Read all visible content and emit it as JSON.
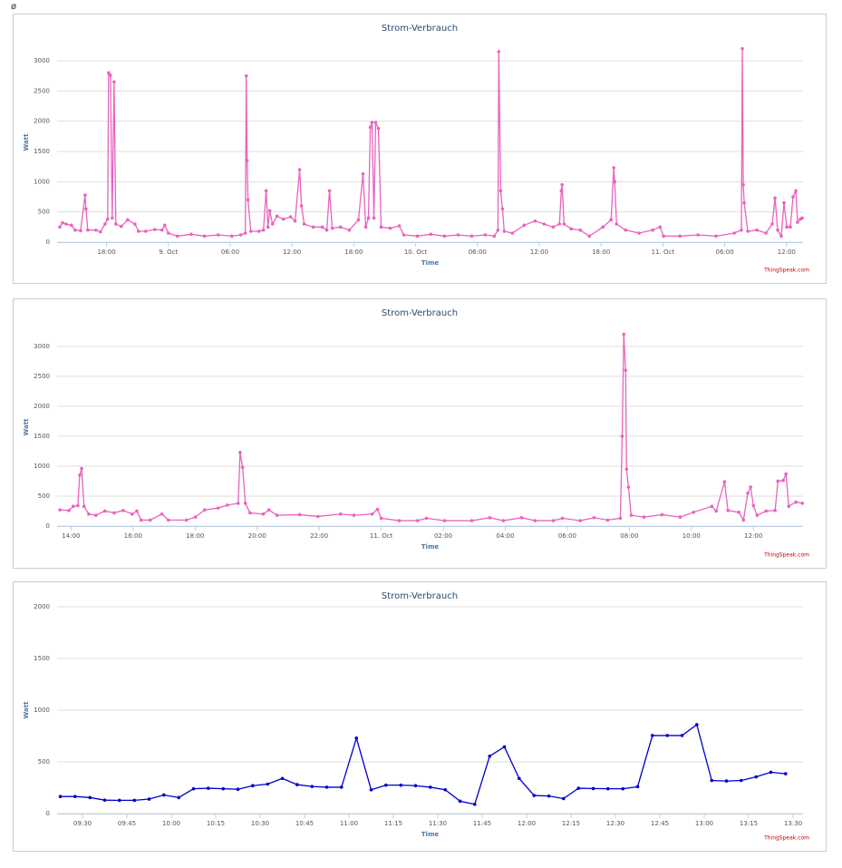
{
  "corner_symbol": "ø",
  "chart_data": [
    {
      "type": "line",
      "title": "Strom-Verbrauch",
      "y_label": "Watt",
      "x_label": "Time",
      "credit": "ThingSpeak.com",
      "color": "#e963bf",
      "grid": true,
      "markers": true,
      "xlim": [
        -10.8,
        61.6
      ],
      "ylim": [
        0,
        3300
      ],
      "yticks": [
        0,
        500,
        1000,
        1500,
        2000,
        2500,
        3000
      ],
      "xticks": [
        {
          "value": -6,
          "label": "18:00"
        },
        {
          "value": 0,
          "label": "9. Oct"
        },
        {
          "value": 6,
          "label": "06:00"
        },
        {
          "value": 12,
          "label": "12:00"
        },
        {
          "value": 18,
          "label": "18:00"
        },
        {
          "value": 24,
          "label": "10. Oct"
        },
        {
          "value": 30,
          "label": "06:00"
        },
        {
          "value": 36,
          "label": "12:00"
        },
        {
          "value": 42,
          "label": "18:00"
        },
        {
          "value": 48,
          "label": "11. Oct"
        },
        {
          "value": 54,
          "label": "06:00"
        },
        {
          "value": 60,
          "label": "12:00"
        }
      ],
      "x": [
        -10.54,
        -10.28,
        -9.93,
        -9.4,
        -9.05,
        -8.52,
        -8.08,
        -8.0,
        -7.82,
        -7.03,
        -6.59,
        -6.15,
        -5.89,
        -5.8,
        -5.62,
        -5.45,
        -5.27,
        -5.1,
        -4.57,
        -3.95,
        -3.25,
        -2.9,
        -2.2,
        -1.32,
        -0.62,
        -0.35,
        0,
        0.88,
        2.2,
        3.51,
        4.83,
        6.15,
        7.03,
        7.47,
        7.56,
        7.64,
        7.73,
        8.0,
        8.79,
        9.23,
        9.49,
        9.67,
        9.84,
        10.11,
        10.54,
        11.16,
        11.86,
        12.3,
        12.74,
        12.92,
        13.18,
        14.06,
        14.94,
        15.38,
        15.64,
        15.91,
        16.7,
        17.57,
        18.45,
        18.89,
        19.16,
        19.42,
        19.6,
        19.77,
        19.95,
        20.12,
        20.39,
        20.65,
        21.53,
        22.41,
        22.85,
        24.17,
        25.48,
        26.8,
        28.12,
        29.44,
        30.76,
        31.63,
        31.99,
        32.07,
        32.25,
        32.43,
        32.6,
        33.39,
        34.53,
        35.59,
        36.47,
        37.35,
        37.96,
        38.14,
        38.22,
        38.4,
        39.1,
        39.98,
        40.86,
        42.18,
        42.97,
        43.23,
        43.32,
        43.5,
        44.38,
        45.69,
        47.01,
        47.72,
        48.07,
        49.65,
        51.41,
        53.16,
        54.92,
        55.62,
        55.71,
        55.8,
        55.89,
        56.24,
        57.12,
        58.0,
        58.61,
        58.88,
        59.14,
        59.49,
        59.75,
        60.02,
        60.37,
        60.63,
        60.9,
        61.07,
        61.34,
        61.51
      ],
      "values": [
        250,
        320,
        300,
        280,
        200,
        190,
        780,
        550,
        200,
        200,
        170,
        300,
        380,
        2800,
        2760,
        400,
        2650,
        300,
        260,
        370,
        300,
        180,
        180,
        210,
        200,
        280,
        150,
        100,
        130,
        100,
        120,
        100,
        120,
        150,
        2750,
        1350,
        700,
        180,
        180,
        200,
        850,
        250,
        520,
        300,
        430,
        380,
        420,
        350,
        1200,
        600,
        300,
        250,
        250,
        200,
        850,
        230,
        250,
        200,
        370,
        1130,
        250,
        400,
        1900,
        1980,
        400,
        1980,
        1880,
        250,
        230,
        270,
        120,
        100,
        130,
        100,
        120,
        100,
        120,
        100,
        200,
        3150,
        850,
        550,
        180,
        150,
        280,
        350,
        300,
        250,
        300,
        850,
        950,
        300,
        220,
        200,
        100,
        250,
        370,
        1230,
        1000,
        300,
        200,
        150,
        200,
        250,
        100,
        100,
        120,
        100,
        150,
        200,
        3200,
        950,
        650,
        180,
        200,
        150,
        300,
        730,
        200,
        100,
        650,
        250,
        250,
        750,
        850,
        330,
        380,
        400
      ]
    },
    {
      "type": "line",
      "title": "Strom-Verbrauch",
      "y_label": "Watt",
      "x_label": "Time",
      "credit": "ThingSpeak.com",
      "color": "#e963bf",
      "grid": true,
      "markers": true,
      "xlim": [
        -10.45,
        13.6
      ],
      "ylim": [
        0,
        3300
      ],
      "yticks": [
        0,
        500,
        1000,
        1500,
        2000,
        2500,
        3000
      ],
      "xticks": [
        {
          "value": -10,
          "label": "14:00"
        },
        {
          "value": -8,
          "label": "16:00"
        },
        {
          "value": -6,
          "label": "18:00"
        },
        {
          "value": -4,
          "label": "20:00"
        },
        {
          "value": -2,
          "label": "22:00"
        },
        {
          "value": 0,
          "label": "11. Oct"
        },
        {
          "value": 2,
          "label": "02:00"
        },
        {
          "value": 4,
          "label": "04:00"
        },
        {
          "value": 6,
          "label": "06:00"
        },
        {
          "value": 8,
          "label": "08:00"
        },
        {
          "value": 10,
          "label": "10:00"
        },
        {
          "value": 12,
          "label": "12:00"
        }
      ],
      "x": [
        -10.36,
        -10.07,
        -9.93,
        -9.78,
        -9.72,
        -9.66,
        -9.58,
        -9.43,
        -9.2,
        -8.91,
        -8.61,
        -8.32,
        -8.03,
        -7.88,
        -7.74,
        -7.45,
        -7.07,
        -6.86,
        -6.28,
        -5.99,
        -5.69,
        -5.26,
        -4.96,
        -4.61,
        -4.55,
        -4.47,
        -4.38,
        -4.23,
        -3.8,
        -3.62,
        -3.36,
        -2.63,
        -2.04,
        -1.31,
        -0.88,
        -0.29,
        -0.12,
        0,
        0.58,
        1.17,
        1.46,
        2.04,
        2.92,
        3.5,
        3.94,
        4.53,
        4.96,
        5.55,
        5.84,
        6.42,
        6.86,
        7.3,
        7.71,
        7.77,
        7.82,
        7.88,
        7.91,
        7.97,
        8.06,
        8.47,
        9.05,
        9.64,
        10.07,
        10.66,
        10.8,
        11.07,
        11.18,
        11.53,
        11.68,
        11.82,
        11.91,
        12.0,
        12.12,
        12.41,
        12.7,
        12.79,
        12.96,
        13.05,
        13.14,
        13.37,
        13.58
      ],
      "values": [
        270,
        260,
        330,
        340,
        850,
        960,
        330,
        200,
        180,
        250,
        220,
        260,
        200,
        250,
        100,
        100,
        200,
        100,
        100,
        150,
        270,
        300,
        350,
        380,
        1230,
        980,
        380,
        220,
        200,
        270,
        180,
        190,
        160,
        200,
        180,
        200,
        280,
        130,
        90,
        90,
        130,
        90,
        90,
        140,
        90,
        140,
        90,
        90,
        130,
        90,
        140,
        100,
        130,
        1500,
        3200,
        2600,
        950,
        650,
        180,
        150,
        190,
        150,
        230,
        330,
        250,
        740,
        260,
        230,
        100,
        550,
        650,
        340,
        180,
        250,
        260,
        750,
        760,
        870,
        330,
        400,
        380
      ]
    },
    {
      "type": "line",
      "title": "Strom-Verbrauch",
      "y_label": "Watt",
      "x_label": "Time",
      "credit": "ThingSpeak.com",
      "color": "#0000cc",
      "grid": true,
      "markers": true,
      "xlim": [
        9.357,
        13.556
      ],
      "ylim": [
        0,
        2000
      ],
      "yticks": [
        0,
        500,
        1000,
        1500,
        2000
      ],
      "xticks": [
        {
          "value": 9.5,
          "label": "09:30"
        },
        {
          "value": 9.75,
          "label": "09:45"
        },
        {
          "value": 10,
          "label": "10:00"
        },
        {
          "value": 10.25,
          "label": "10:15"
        },
        {
          "value": 10.5,
          "label": "10:30"
        },
        {
          "value": 10.75,
          "label": "10:45"
        },
        {
          "value": 11,
          "label": "11:00"
        },
        {
          "value": 11.25,
          "label": "11:15"
        },
        {
          "value": 11.5,
          "label": "11:30"
        },
        {
          "value": 11.75,
          "label": "11:45"
        },
        {
          "value": 12,
          "label": "12:00"
        },
        {
          "value": 12.25,
          "label": "12:15"
        },
        {
          "value": 12.5,
          "label": "12:30"
        },
        {
          "value": 12.75,
          "label": "12:45"
        },
        {
          "value": 13,
          "label": "13:00"
        },
        {
          "value": 13.25,
          "label": "13:15"
        },
        {
          "value": 13.5,
          "label": "13:30"
        }
      ],
      "x": [
        9.375,
        9.458,
        9.542,
        9.625,
        9.708,
        9.792,
        9.875,
        9.958,
        10.042,
        10.125,
        10.208,
        10.292,
        10.375,
        10.458,
        10.542,
        10.625,
        10.708,
        10.792,
        10.875,
        10.958,
        11.042,
        11.125,
        11.208,
        11.292,
        11.375,
        11.458,
        11.542,
        11.625,
        11.708,
        11.792,
        11.875,
        11.958,
        12.042,
        12.125,
        12.208,
        12.292,
        12.375,
        12.458,
        12.542,
        12.625,
        12.708,
        12.792,
        12.875,
        12.958,
        13.042,
        13.125,
        13.208,
        13.292,
        13.375,
        13.458
      ],
      "values": [
        165,
        165,
        155,
        130,
        128,
        128,
        140,
        180,
        155,
        240,
        245,
        240,
        235,
        270,
        285,
        340,
        280,
        262,
        255,
        255,
        730,
        230,
        275,
        275,
        270,
        255,
        230,
        120,
        90,
        555,
        645,
        340,
        175,
        170,
        145,
        245,
        242,
        240,
        240,
        260,
        755,
        755,
        755,
        860,
        320,
        315,
        320,
        355,
        400,
        385
      ]
    }
  ]
}
